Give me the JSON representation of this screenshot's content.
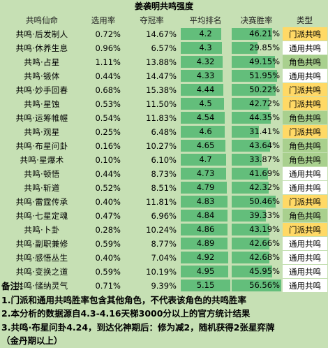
{
  "title": "姜袭明共鸣强度",
  "headers": [
    "共鸣仙命",
    "选用率",
    "夺冠率",
    "平均排名",
    "决赛胜率",
    "类型"
  ],
  "rank_max": 5.15,
  "winrate_max": 56.56,
  "rows": [
    {
      "name": "共鸣·后发制人",
      "use": "0.72%",
      "win": "14.67%",
      "rank": "4.2",
      "rank_v": 4.2,
      "final": "46.21%",
      "final_v": 46.21,
      "type": "门派共鸣",
      "type_key": "men"
    },
    {
      "name": "共鸣·休养生息",
      "use": "0.96%",
      "win": "6.57%",
      "rank": "4.3",
      "rank_v": 4.3,
      "final": "29.85%",
      "final_v": 29.85,
      "type": "通用共鸣",
      "type_key": "tong"
    },
    {
      "name": "共鸣·占星",
      "use": "1.11%",
      "win": "13.88%",
      "rank": "4.32",
      "rank_v": 4.32,
      "final": "49.15%",
      "final_v": 49.15,
      "type": "角色共鸣",
      "type_key": "jue"
    },
    {
      "name": "共鸣·锻体",
      "use": "0.44%",
      "win": "14.47%",
      "rank": "4.33",
      "rank_v": 4.33,
      "final": "51.95%",
      "final_v": 51.95,
      "type": "通用共鸣",
      "type_key": "tong"
    },
    {
      "name": "共鸣·妙手回春",
      "use": "0.68%",
      "win": "15.38%",
      "rank": "4.44",
      "rank_v": 4.44,
      "final": "50.22%",
      "final_v": 50.22,
      "type": "门派共鸣",
      "type_key": "men"
    },
    {
      "name": "共鸣·星蚀",
      "use": "0.53%",
      "win": "11.50%",
      "rank": "4.5",
      "rank_v": 4.5,
      "final": "42.72%",
      "final_v": 42.72,
      "type": "门派共鸣",
      "type_key": "men"
    },
    {
      "name": "共鸣·运筹帷幄",
      "use": "0.54%",
      "win": "11.83%",
      "rank": "4.54",
      "rank_v": 4.54,
      "final": "44.35%",
      "final_v": 44.35,
      "type": "角色共鸣",
      "type_key": "jue"
    },
    {
      "name": "共鸣·观星",
      "use": "0.25%",
      "win": "6.48%",
      "rank": "4.6",
      "rank_v": 4.6,
      "final": "31.41%",
      "final_v": 31.41,
      "type": "门派共鸣",
      "type_key": "men"
    },
    {
      "name": "共鸣·布星问卦",
      "use": "0.16%",
      "win": "10.27%",
      "rank": "4.65",
      "rank_v": 4.65,
      "final": "43.64%",
      "final_v": 43.64,
      "type": "角色共鸣",
      "type_key": "jue"
    },
    {
      "name": "共鸣·星爆术",
      "use": "0.10%",
      "win": "6.10%",
      "rank": "4.7",
      "rank_v": 4.7,
      "final": "33.87%",
      "final_v": 33.87,
      "type": "角色共鸣",
      "type_key": "jue"
    },
    {
      "name": "共鸣·顿悟",
      "use": "0.44%",
      "win": "8.73%",
      "rank": "4.73",
      "rank_v": 4.73,
      "final": "41.69%",
      "final_v": 41.69,
      "type": "通用共鸣",
      "type_key": "tong"
    },
    {
      "name": "共鸣·斩道",
      "use": "0.52%",
      "win": "8.51%",
      "rank": "4.79",
      "rank_v": 4.79,
      "final": "42.32%",
      "final_v": 42.32,
      "type": "通用共鸣",
      "type_key": "tong"
    },
    {
      "name": "共鸣·雷霆传承",
      "use": "0.40%",
      "win": "11.81%",
      "rank": "4.83",
      "rank_v": 4.83,
      "final": "50.46%",
      "final_v": 50.46,
      "type": "门派共鸣",
      "type_key": "men"
    },
    {
      "name": "共鸣·七星定魂",
      "use": "0.47%",
      "win": "6.96%",
      "rank": "4.84",
      "rank_v": 4.84,
      "final": "39.33%",
      "final_v": 39.33,
      "type": "角色共鸣",
      "type_key": "jue"
    },
    {
      "name": "共鸣·卜卦",
      "use": "0.28%",
      "win": "10.24%",
      "rank": "4.86",
      "rank_v": 4.86,
      "final": "43.19%",
      "final_v": 43.19,
      "type": "门派共鸣",
      "type_key": "men"
    },
    {
      "name": "共鸣·副职兼修",
      "use": "0.59%",
      "win": "8.77%",
      "rank": "4.89",
      "rank_v": 4.89,
      "final": "42.66%",
      "final_v": 42.66,
      "type": "通用共鸣",
      "type_key": "tong"
    },
    {
      "name": "共鸣·感悟丛生",
      "use": "0.40%",
      "win": "7.04%",
      "rank": "4.92",
      "rank_v": 4.92,
      "final": "42.68%",
      "final_v": 42.68,
      "type": "通用共鸣",
      "type_key": "tong"
    },
    {
      "name": "共鸣·变换之道",
      "use": "0.59%",
      "win": "10.19%",
      "rank": "4.95",
      "rank_v": 4.95,
      "final": "45.95%",
      "final_v": 45.95,
      "type": "通用共鸣",
      "type_key": "tong"
    },
    {
      "name": "共鸣·储纳灵气",
      "use": "0.71%",
      "win": "9.39%",
      "rank": "5.15",
      "rank_v": 5.15,
      "final": "56.56%",
      "final_v": 56.56,
      "type": "通用共鸣",
      "type_key": "tong"
    }
  ],
  "notes": [
    "备注：",
    "1.门派和通用共鸣胜率包含其他角色，不代表该角色的共鸣胜率",
    "2.本分析的数据源自4.3-4.16天梯3000分以上的官方统计结果",
    "3.共鸣·布星问卦4.24，到达化神期后：修为减2，随机获得2张星弈牌",
    "（金丹期以上）"
  ]
}
